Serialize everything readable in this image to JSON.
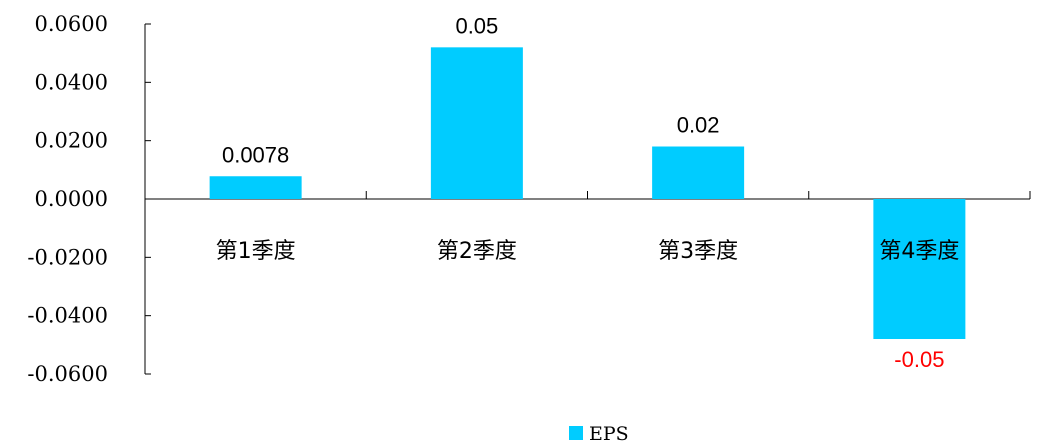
{
  "chart_data": {
    "type": "bar",
    "categories": [
      "第1季度",
      "第2季度",
      "第3季度",
      "第4季度"
    ],
    "series": [
      {
        "name": "EPS",
        "values": [
          0.0078,
          0.052,
          0.018,
          -0.048
        ]
      }
    ],
    "data_labels": [
      "0.0078",
      "0.05",
      "0.02",
      "-0.05"
    ],
    "y_ticks": [
      0.06,
      0.04,
      0.02,
      0.0,
      -0.02,
      -0.04,
      -0.06
    ],
    "y_tick_labels": [
      "0.0600",
      "0.0400",
      "0.0200",
      "0.0000",
      "-0.0200",
      "-0.0400",
      "-0.0600"
    ],
    "ylim": [
      -0.06,
      0.06
    ],
    "grid": false,
    "legend_position": "bottom",
    "colors": {
      "bar": "#00CCFF",
      "positive_label": "#000000",
      "negative_label": "#FF0000",
      "axis": "#000000"
    }
  }
}
